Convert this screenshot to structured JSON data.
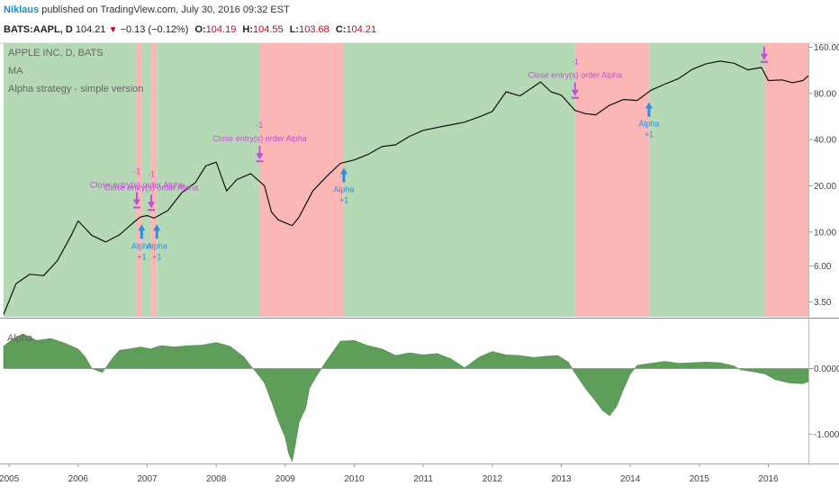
{
  "header": {
    "author": "Niklaus",
    "published": "published on TradingView.com, July 30, 2016 09:32 EST"
  },
  "quote": {
    "symbol": "BATS:AAPL, D",
    "last": "104.21",
    "change": "−0.13 (−0.12%)",
    "open_label": "O:",
    "open": "104.19",
    "high_label": "H:",
    "high": "104.55",
    "low_label": "L:",
    "low": "103.68",
    "close_label": "C:",
    "close": "104.21"
  },
  "colors": {
    "bull_bg": "#b6d9b5",
    "bear_bg": "#fbb6b6",
    "price_line": "#111111",
    "osc_fill": "#5e9e5a",
    "entry_marker": "#2e8fdc",
    "exit_marker": "#c050d0"
  },
  "chart_data": [
    {
      "type": "line",
      "legend": [
        "APPLE INC, D, BATS",
        "MA",
        "Alpha strategy - simple version"
      ],
      "y_scale": "log",
      "y_ticks": [
        "160.00",
        "80.00",
        "40.00",
        "20.00",
        "10.00",
        "6.00",
        "3.50"
      ],
      "y_tick_values": [
        160,
        80,
        40,
        20,
        10,
        6,
        3.5
      ],
      "ylim": [
        2.8,
        170
      ],
      "xlim": [
        2004.92,
        2016.58
      ],
      "x_ticks": [
        "2005",
        "2006",
        "2007",
        "2008",
        "2009",
        "2010",
        "2011",
        "2012",
        "2013",
        "2014",
        "2015",
        "2016"
      ],
      "series": [
        {
          "name": "AAPL",
          "x": [
            2004.92,
            2005.1,
            2005.3,
            2005.5,
            2005.7,
            2005.9,
            2006.0,
            2006.2,
            2006.4,
            2006.6,
            2006.8,
            2006.9,
            2007.0,
            2007.1,
            2007.3,
            2007.5,
            2007.7,
            2007.85,
            2008.0,
            2008.15,
            2008.3,
            2008.5,
            2008.7,
            2008.8,
            2008.9,
            2009.1,
            2009.2,
            2009.4,
            2009.6,
            2009.8,
            2010.0,
            2010.2,
            2010.4,
            2010.6,
            2010.8,
            2011.0,
            2011.3,
            2011.6,
            2011.8,
            2012.0,
            2012.2,
            2012.4,
            2012.7,
            2012.85,
            2013.0,
            2013.2,
            2013.35,
            2013.5,
            2013.7,
            2013.9,
            2014.1,
            2014.3,
            2014.5,
            2014.7,
            2014.9,
            2015.1,
            2015.3,
            2015.5,
            2015.7,
            2015.9,
            2016.0,
            2016.2,
            2016.35,
            2016.5,
            2016.58
          ],
          "values": [
            2.9,
            4.6,
            5.3,
            5.2,
            6.5,
            9.5,
            11.8,
            9.5,
            8.6,
            9.6,
            11.5,
            12.5,
            12.8,
            12.3,
            13.8,
            18.0,
            21.0,
            27.0,
            28.5,
            18.5,
            22.0,
            24.0,
            20.0,
            13.5,
            12.0,
            11.0,
            12.5,
            18.5,
            23.0,
            28.0,
            29.5,
            32.0,
            36.0,
            37.0,
            42.0,
            46.0,
            49.0,
            52.0,
            56.0,
            61.0,
            82.0,
            77.0,
            95.0,
            82.0,
            78.0,
            62.0,
            59.0,
            58.0,
            67.0,
            73.0,
            72.0,
            84.0,
            92.0,
            100.0,
            115.0,
            125.0,
            130.0,
            126.0,
            114.0,
            118.0,
            97.0,
            98.0,
            94.0,
            97.0,
            104.21
          ]
        }
      ],
      "regions": [
        {
          "start": 2004.92,
          "end": 2006.85,
          "state": "long"
        },
        {
          "start": 2006.85,
          "end": 2006.92,
          "state": "flat"
        },
        {
          "start": 2006.92,
          "end": 2007.06,
          "state": "long"
        },
        {
          "start": 2007.06,
          "end": 2007.14,
          "state": "flat"
        },
        {
          "start": 2007.14,
          "end": 2008.63,
          "state": "long"
        },
        {
          "start": 2008.63,
          "end": 2009.85,
          "state": "flat"
        },
        {
          "start": 2009.85,
          "end": 2013.2,
          "state": "long"
        },
        {
          "start": 2013.2,
          "end": 2014.27,
          "state": "flat"
        },
        {
          "start": 2014.27,
          "end": 2015.94,
          "state": "long"
        },
        {
          "start": 2015.94,
          "end": 2016.58,
          "state": "flat"
        }
      ],
      "annotations": [
        {
          "kind": "exit",
          "x": 2006.85,
          "value": 13.5,
          "label": "Close entry(s) order Alpha",
          "qty": "-1"
        },
        {
          "kind": "exit",
          "x": 2007.06,
          "value": 13.0,
          "label": "Close entry(s) order Alpha",
          "qty": "-1"
        },
        {
          "kind": "entry",
          "x": 2006.92,
          "value": 12.0,
          "label": "Alpha",
          "qty": "+1"
        },
        {
          "kind": "entry",
          "x": 2007.14,
          "value": 12.0,
          "label": "Alpha",
          "qty": "+1"
        },
        {
          "kind": "exit",
          "x": 2008.63,
          "value": 27.0,
          "label": "Close entry(s) order Alpha",
          "qty": "-1"
        },
        {
          "kind": "entry",
          "x": 2009.85,
          "value": 28.0,
          "label": "Alpha",
          "qty": "+1"
        },
        {
          "kind": "exit",
          "x": 2013.2,
          "value": 70.0,
          "label": "Close entry(s) order Alpha",
          "qty": "-1"
        },
        {
          "kind": "entry",
          "x": 2014.27,
          "value": 75.0,
          "label": "Alpha",
          "qty": "+1"
        },
        {
          "kind": "exit",
          "x": 2015.94,
          "value": 120.0,
          "label": "",
          "qty": ""
        }
      ]
    },
    {
      "type": "area",
      "legend": [
        "Alpha"
      ],
      "y_ticks": [
        "0.0000",
        "-1.0000"
      ],
      "y_tick_values": [
        0.0,
        -1.0
      ],
      "ylim": [
        -1.45,
        0.75
      ],
      "xlim": [
        2004.92,
        2016.58
      ],
      "series": [
        {
          "name": "Alpha",
          "x": [
            2004.92,
            2005.05,
            2005.2,
            2005.4,
            2005.6,
            2005.8,
            2006.0,
            2006.1,
            2006.2,
            2006.35,
            2006.5,
            2006.6,
            2006.75,
            2006.9,
            2007.05,
            2007.2,
            2007.4,
            2007.6,
            2007.8,
            2008.0,
            2008.2,
            2008.4,
            2008.5,
            2008.6,
            2008.7,
            2008.8,
            2008.9,
            2009.0,
            2009.05,
            2009.1,
            2009.15,
            2009.2,
            2009.3,
            2009.35,
            2009.45,
            2009.6,
            2009.8,
            2010.0,
            2010.2,
            2010.4,
            2010.6,
            2010.8,
            2011.0,
            2011.2,
            2011.4,
            2011.6,
            2011.8,
            2012.0,
            2012.2,
            2012.4,
            2012.6,
            2012.8,
            2012.95,
            2013.1,
            2013.2,
            2013.35,
            2013.5,
            2013.6,
            2013.7,
            2013.8,
            2013.9,
            2014.0,
            2014.1,
            2014.3,
            2014.5,
            2014.7,
            2014.9,
            2015.1,
            2015.3,
            2015.5,
            2015.6,
            2015.8,
            2015.95,
            2016.1,
            2016.3,
            2016.5,
            2016.58
          ],
          "values": [
            0.34,
            0.45,
            0.53,
            0.43,
            0.46,
            0.39,
            0.3,
            0.18,
            0.0,
            -0.06,
            0.16,
            0.28,
            0.3,
            0.33,
            0.3,
            0.35,
            0.33,
            0.35,
            0.36,
            0.4,
            0.34,
            0.18,
            0.04,
            -0.08,
            -0.22,
            -0.5,
            -0.8,
            -1.05,
            -1.3,
            -1.42,
            -1.15,
            -0.82,
            -0.6,
            -0.3,
            -0.12,
            0.12,
            0.42,
            0.43,
            0.35,
            0.3,
            0.2,
            0.24,
            0.21,
            0.23,
            0.15,
            0.01,
            0.17,
            0.26,
            0.21,
            0.2,
            0.17,
            0.19,
            0.2,
            0.1,
            -0.07,
            -0.3,
            -0.5,
            -0.64,
            -0.72,
            -0.58,
            -0.32,
            -0.08,
            0.05,
            0.08,
            0.11,
            0.08,
            0.09,
            0.1,
            0.09,
            0.04,
            -0.02,
            -0.05,
            -0.08,
            -0.17,
            -0.22,
            -0.23,
            -0.2
          ]
        }
      ]
    }
  ]
}
